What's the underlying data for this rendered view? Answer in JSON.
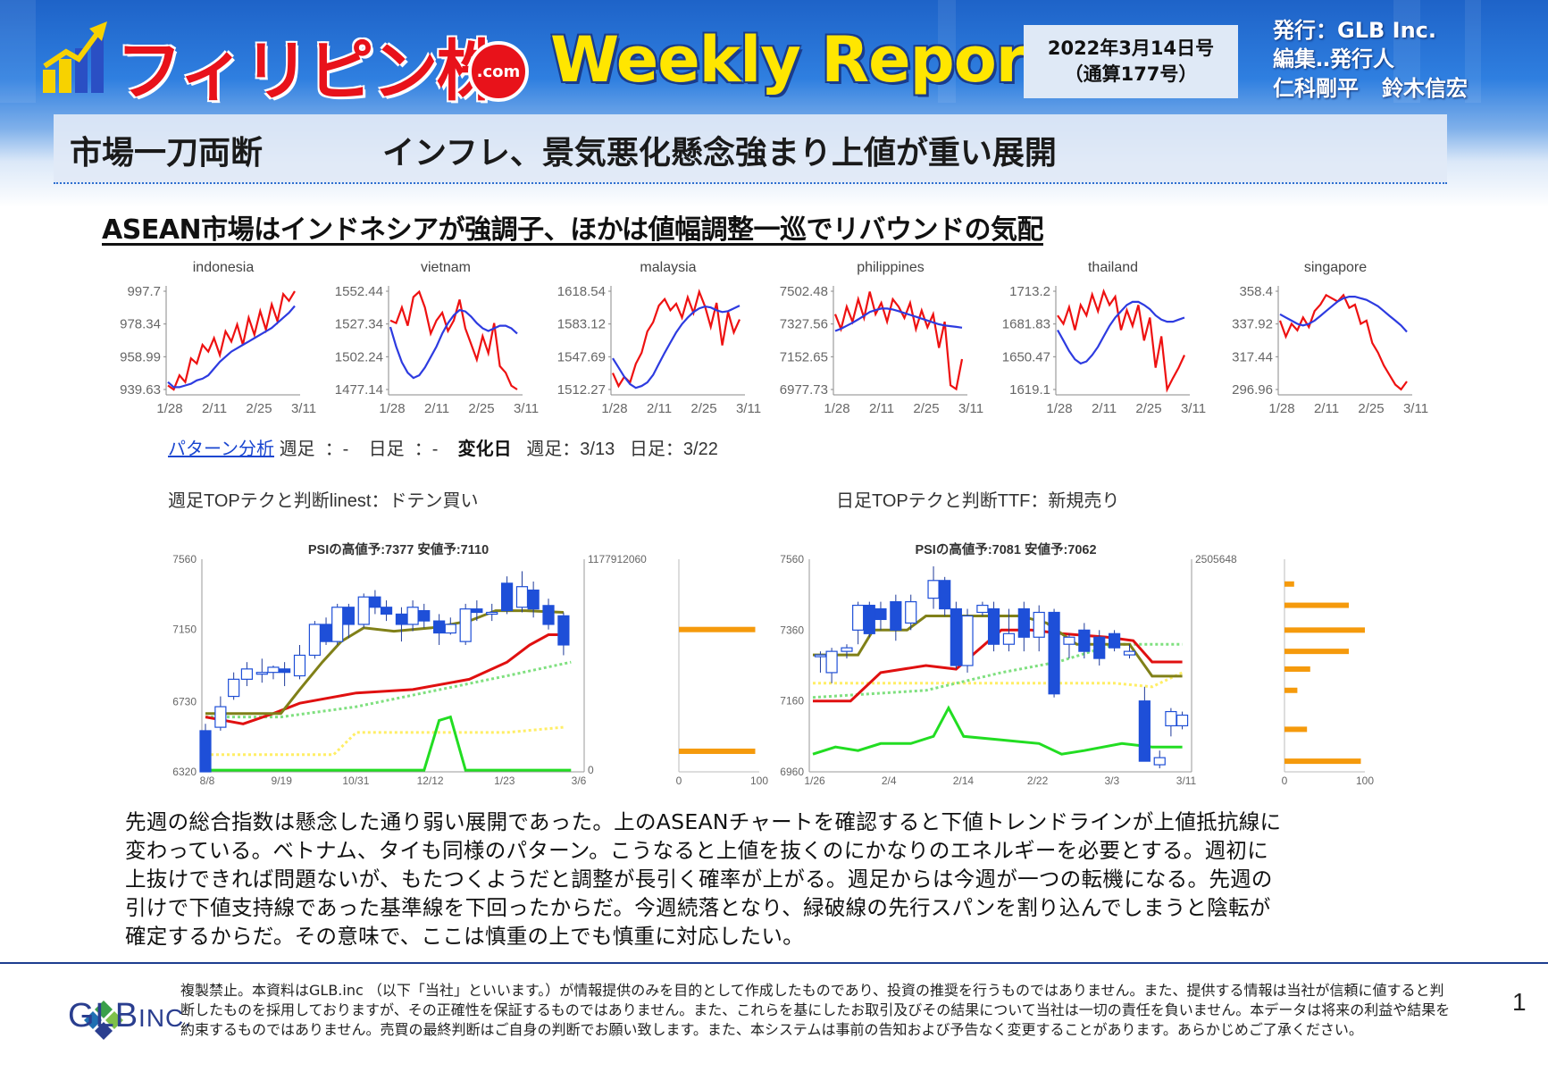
{
  "header": {
    "logo_text": "フィリピン株",
    "logo_badge": ".com",
    "title": "Weekly Report",
    "issue_date": "2022年3月14日号",
    "issue_number": "（通算177号）",
    "publisher_line": "発行：GLB Inc.",
    "editor_line": "編集‥発行人",
    "editor_names": [
      "仁科剛平",
      "鈴木信宏"
    ]
  },
  "headline": {
    "label": "市場一刀両断",
    "title": "インフレ、景気悪化懸念強まり上値が重い展開"
  },
  "subtitle": "ASEAN市場はインドネシアが強調子、ほかは値幅調整一巡でリバウンドの気配",
  "colors": {
    "price": "#ee1111",
    "average": "#2d3be0",
    "orange_bar": "#f59a0c",
    "kijun": "#808018",
    "tenkan": "#e01010",
    "span": "#7fe07f",
    "chikou": "#ffee66",
    "psy": "#22dd22",
    "candle": "#1e4fd8"
  },
  "chart_data": [
    {
      "type": "line",
      "title": "indonesia",
      "x_ticks": [
        "1/28",
        "2/11",
        "2/25",
        "3/11"
      ],
      "y_ticks": [
        "997.7",
        "978.34",
        "958.99",
        "939.63"
      ],
      "ylim": [
        939.63,
        997.7
      ],
      "series": [
        {
          "values": [
            942,
            939.6,
            948,
            944,
            958,
            955,
            966,
            962,
            970,
            960,
            974,
            968,
            978,
            966,
            982,
            972,
            986,
            975,
            990,
            980,
            996,
            992,
            997.7
          ]
        },
        {
          "values": [
            944,
            941,
            941,
            942,
            943,
            945,
            946,
            948,
            952,
            956,
            959,
            962,
            964,
            966,
            968,
            970,
            972,
            974,
            976,
            979,
            982,
            985,
            989
          ]
        }
      ]
    },
    {
      "type": "line",
      "title": "vietnam",
      "x_ticks": [
        "1/28",
        "2/11",
        "2/25",
        "3/11"
      ],
      "y_ticks": [
        "1552.44",
        "1527.34",
        "1502.24",
        "1477.14"
      ],
      "ylim": [
        1477.14,
        1552.44
      ],
      "series": [
        {
          "values": [
            1530,
            1528,
            1540,
            1526,
            1548,
            1552,
            1540,
            1520,
            1530,
            1536,
            1522,
            1530,
            1546,
            1524,
            1512,
            1500,
            1518,
            1505,
            1528,
            1495,
            1490,
            1480,
            1477.14
          ]
        },
        {
          "values": [
            1525,
            1510,
            1498,
            1490,
            1486,
            1488,
            1494,
            1502,
            1510,
            1520,
            1528,
            1534,
            1538,
            1537,
            1533,
            1528,
            1524,
            1522,
            1524,
            1526,
            1526,
            1524,
            1520
          ]
        }
      ]
    },
    {
      "type": "line",
      "title": "malaysia",
      "x_ticks": [
        "1/28",
        "2/11",
        "2/25",
        "3/11"
      ],
      "y_ticks": [
        "1618.54",
        "1583.12",
        "1547.69",
        "1512.27"
      ],
      "ylim": [
        1512.27,
        1618.54
      ],
      "series": [
        {
          "values": [
            1530,
            1516,
            1526,
            1520,
            1540,
            1552,
            1575,
            1585,
            1603,
            1610,
            1598,
            1605,
            1590,
            1612,
            1595,
            1618,
            1602,
            1580,
            1606,
            1560,
            1596,
            1574,
            1588
          ]
        },
        {
          "values": [
            1546,
            1536,
            1526,
            1518,
            1514,
            1516,
            1520,
            1528,
            1540,
            1552,
            1563,
            1574,
            1583,
            1590,
            1596,
            1600,
            1602,
            1601,
            1598,
            1596,
            1597,
            1600,
            1603
          ]
        }
      ]
    },
    {
      "type": "line",
      "title": "philippines",
      "x_ticks": [
        "1/28",
        "2/11",
        "2/25",
        "3/11"
      ],
      "y_ticks": [
        "7502.48",
        "7327.56",
        "7152.65",
        "6977.73"
      ],
      "ylim": [
        6977.73,
        7502.48
      ],
      "series": [
        {
          "values": [
            7380,
            7300,
            7420,
            7340,
            7460,
            7360,
            7500,
            7380,
            7440,
            7340,
            7460,
            7420,
            7360,
            7440,
            7300,
            7400,
            7310,
            7380,
            7200,
            7340,
            7000,
            6980,
            7140
          ]
        },
        {
          "values": [
            7290,
            7302,
            7318,
            7334,
            7352,
            7372,
            7392,
            7402,
            7410,
            7410,
            7405,
            7396,
            7386,
            7376,
            7366,
            7356,
            7346,
            7336,
            7326,
            7320,
            7316,
            7312,
            7308
          ]
        }
      ]
    },
    {
      "type": "line",
      "title": "thailand",
      "x_ticks": [
        "1/28",
        "2/11",
        "2/25",
        "3/11"
      ],
      "y_ticks": [
        "1713.2",
        "1681.83",
        "1650.47",
        "1619.1"
      ],
      "ylim": [
        1619.1,
        1713.2
      ],
      "series": [
        {
          "values": [
            1690,
            1682,
            1698,
            1676,
            1700,
            1690,
            1710,
            1694,
            1713,
            1700,
            1708,
            1676,
            1695,
            1680,
            1700,
            1666,
            1688,
            1640,
            1670,
            1619.1,
            1630,
            1640,
            1652
          ]
        },
        {
          "values": [
            1676,
            1666,
            1656,
            1648,
            1644,
            1646,
            1652,
            1660,
            1670,
            1680,
            1688,
            1694,
            1700,
            1703,
            1703,
            1700,
            1696,
            1690,
            1686,
            1684,
            1684,
            1686,
            1688
          ]
        }
      ]
    },
    {
      "type": "line",
      "title": "singapore",
      "x_ticks": [
        "1/28",
        "2/11",
        "2/25",
        "3/11"
      ],
      "y_ticks": [
        "358.4",
        "337.92",
        "317.44",
        "296.96"
      ],
      "ylim": [
        296.96,
        358.4
      ],
      "series": [
        {
          "values": [
            340,
            330,
            338,
            334,
            342,
            336,
            346,
            350,
            356,
            354,
            352,
            356,
            348,
            350,
            338,
            340,
            326,
            320,
            312,
            306,
            300,
            297,
            302
          ]
        },
        {
          "values": [
            344,
            342,
            340,
            338,
            337,
            338,
            340,
            343,
            346,
            349,
            352,
            354,
            355,
            355,
            354,
            353,
            351,
            349,
            346,
            343,
            340,
            337,
            333
          ]
        }
      ]
    },
    {
      "type": "candlestick",
      "title": "PSIの高値予:7377 安値予:7110",
      "x_ticks": [
        "8/8",
        "9/19",
        "10/31",
        "12/12",
        "1/23",
        "3/6"
      ],
      "y_ticks": [
        "7560",
        "7150",
        "6730",
        "6320"
      ],
      "ylim": [
        6320,
        7560
      ],
      "right_axis_top": "1177912060",
      "right_axis_bottom": "0",
      "side_x_ticks": [
        "0",
        "100"
      ]
    },
    {
      "type": "candlestick",
      "title": "PSIの高値予:7081 安値予:7062",
      "x_ticks": [
        "1/26",
        "2/4",
        "2/14",
        "2/22",
        "3/3",
        "3/11"
      ],
      "y_ticks": [
        "7560",
        "7360",
        "7160",
        "6960"
      ],
      "ylim": [
        6960,
        7560
      ],
      "right_axis_top": "2505648",
      "side_x_ticks": [
        "0",
        "100"
      ]
    }
  ],
  "pattern": {
    "link": "パターン分析",
    "weekly_label": "週足",
    "weekly_value": "：-",
    "daily_label": "日足",
    "daily_value": "：-",
    "change_label": "変化日",
    "change_weekly": "週足：3/13",
    "change_daily": "日足：3/22",
    "weekly_judge": "週足TOPテクと判断linest：ドテン買い",
    "daily_judge": "日足TOPテクと判断TTF：新規売り"
  },
  "body_lines": [
    "先週の総合指数は懸念した通り弱い展開であった。上のASEANチャートを確認すると下値トレンドラインが上値抵抗線に",
    "変わっている。ベトナム、タイも同様のパターン。こうなると上値を抜くのにかなりのエネルギーを必要とする。週初に",
    "上抜けできれば問題ないが、もたつくようだと調整が長引く確率が上がる。週足からは今週が一つの転機になる。先週の",
    "引けで下値支持線であった基準線を下回ったからだ。今週続落となり、緑破線の先行スパンを割り込んでしまうと陰転が",
    "確定するからだ。その意味で、ここは慎重の上でも慎重に対応したい。"
  ],
  "footer": {
    "company": "GLB",
    "company_suffix": "INC.",
    "disclaimer": "複製禁止。本資料はGLB.inc （以下「当社」といいます。）が情報提供のみを目的として作成したものであり、投資の推奨を行うものではありません。また、提供する情報は当社が信頼に値すると判断したものを採用しておりますが、その正確性を保証するものではありません。また、これらを基にしたお取引及びその結果について当社は一切の責任を負いません。本データは将来の利益や結果を約束するものではありません。売買の最終判断はご自身の判断でお願い致します。また、本システムは事前の告知および予告なく変更することがあります。あらかじめご了承ください。",
    "page": "1"
  }
}
